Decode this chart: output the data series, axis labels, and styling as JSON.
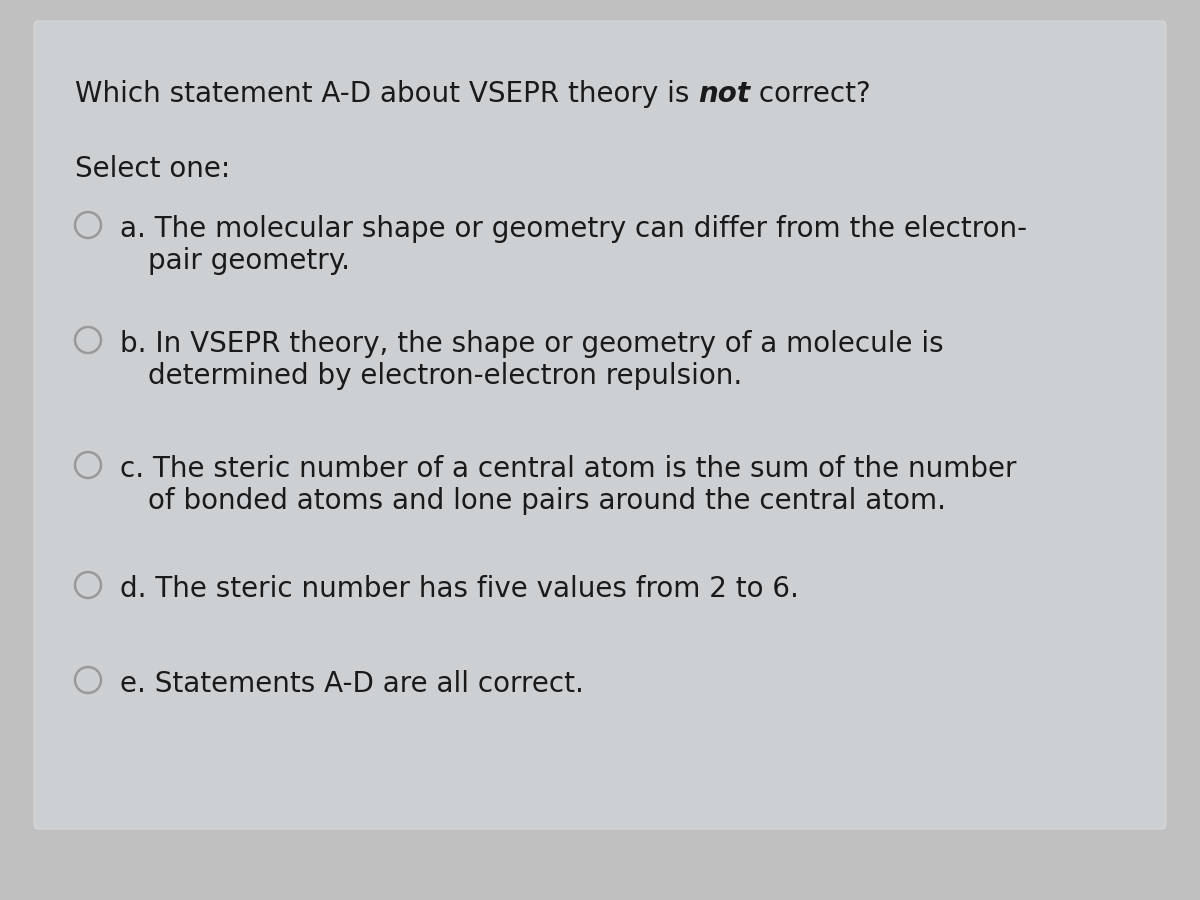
{
  "background_outer": "#c0c0c0",
  "background_card": "#cdd0d3",
  "title_normal1": "Which statement A-D about VSEPR theory is ",
  "title_bold": "not",
  "title_normal2": " correct?",
  "select_label": "Select one:",
  "options": [
    {
      "line1": "a. The molecular shape or geometry can differ from the electron-",
      "line2": "pair geometry."
    },
    {
      "line1": "b. In VSEPR theory, the shape or geometry of a molecule is",
      "line2": "determined by electron-electron repulsion."
    },
    {
      "line1": "c. The steric number of a central atom is the sum of the number",
      "line2": "of bonded atoms and lone pairs around the central atom."
    },
    {
      "line1": "d. The steric number has five values from 2 to 6.",
      "line2": ""
    },
    {
      "line1": "e. Statements A-D are all correct.",
      "line2": ""
    }
  ],
  "text_color": "#1a1a1a",
  "circle_edge_color": "#999999",
  "circle_face_color": "#cdd0d3",
  "font_size": 20
}
